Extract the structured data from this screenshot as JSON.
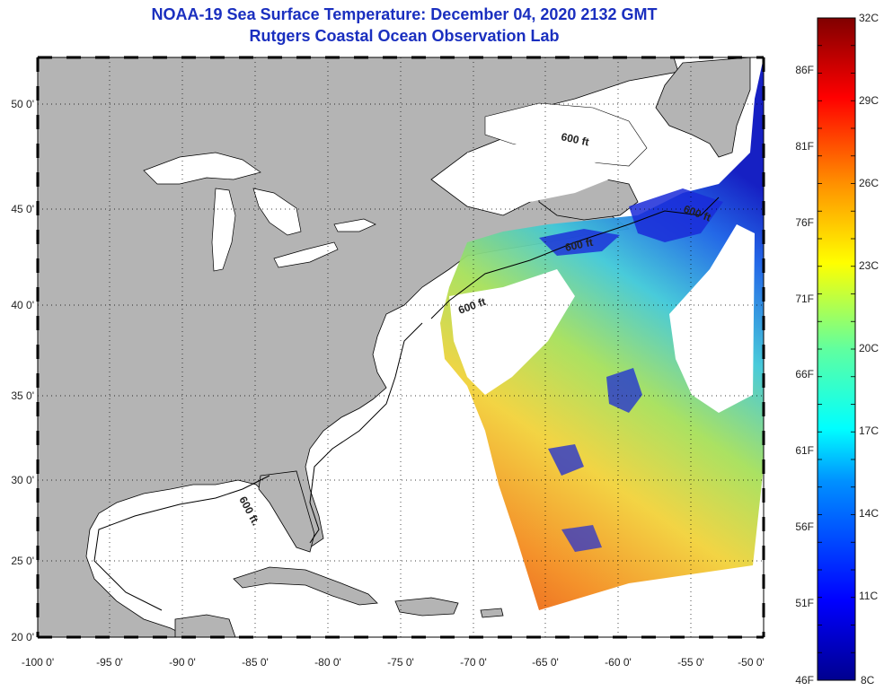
{
  "title": {
    "line1": "NOAA-19 Sea Surface Temperature:  December 04, 2020 2132 GMT",
    "line2": "Rutgers Coastal Ocean Observation Lab"
  },
  "map": {
    "lon_labels": [
      "-100 0'",
      "-95 0'",
      "-90 0'",
      "-85 0'",
      "-80 0'",
      "-75 0'",
      "-70 0'",
      "-65 0'",
      "-60 0'",
      "-55 0'",
      "-50 0'"
    ],
    "lat_labels": [
      "50 0'",
      "45 0'",
      "40 0'",
      "35 0'",
      "30 0'",
      "25 0'",
      "20 0'"
    ],
    "contour_label": "600 ft",
    "contour_label_alt": "600 ft.",
    "colors": {
      "land": "#b4b4b4",
      "ocean": "#ffffff",
      "coast": "#000000"
    }
  },
  "colorbar": {
    "celsius_labels": [
      "32C",
      "29C",
      "26C",
      "23C",
      "20C",
      "17C",
      "14C",
      "11C",
      "8C"
    ],
    "fahrenheit_labels": [
      "86F",
      "81F",
      "76F",
      "71F",
      "66F",
      "61F",
      "56F",
      "51F",
      "46F"
    ],
    "range_c": [
      8,
      32
    ]
  }
}
